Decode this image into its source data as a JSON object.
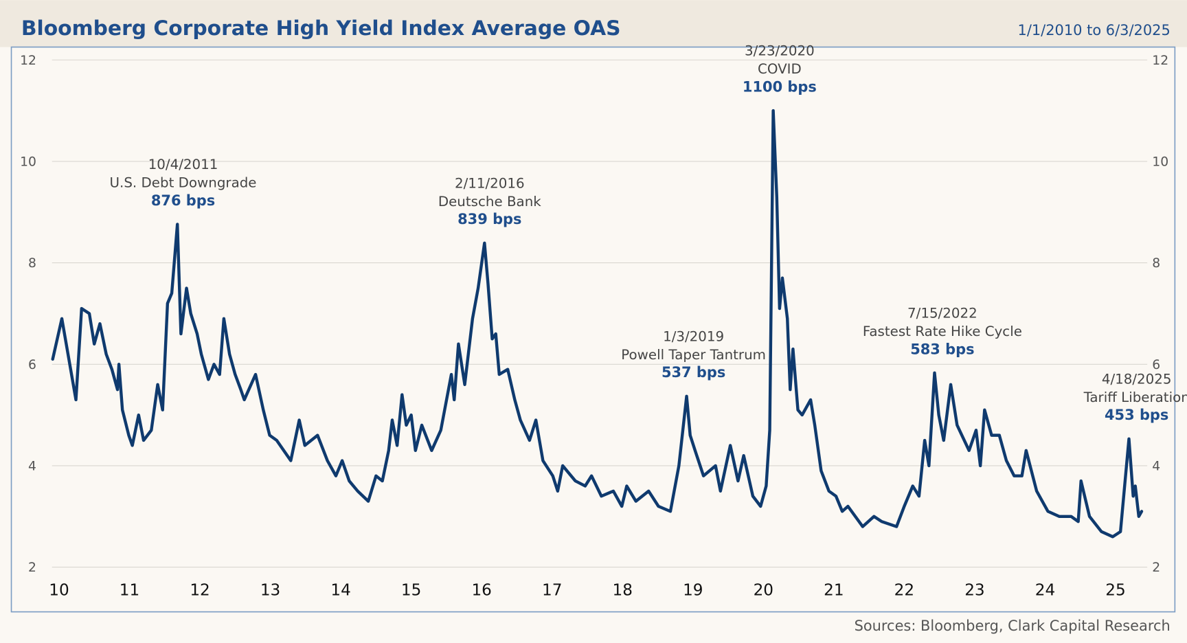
{
  "chart_data": {
    "type": "line",
    "title": "Bloomberg Corporate High Yield Index Average OAS",
    "subtitle": "1/1/2010 to 6/3/2025",
    "source": "Sources: Bloomberg, Clark Capital Research",
    "xlim": [
      9.9,
      25.45
    ],
    "xticks": [
      10,
      11,
      12,
      13,
      14,
      15,
      16,
      17,
      18,
      19,
      20,
      21,
      22,
      23,
      24,
      25
    ],
    "ylim": [
      2,
      12
    ],
    "yticks": [
      2,
      4,
      6,
      8,
      10,
      12
    ],
    "grid": true,
    "right_axis_labels": true,
    "series": [
      {
        "color": "#0f3a6e",
        "x": [
          9.91,
          10.04,
          10.24,
          10.32,
          10.43,
          10.5,
          10.58,
          10.67,
          10.75,
          10.83,
          10.85,
          10.9,
          10.99,
          11.04,
          11.13,
          11.2,
          11.31,
          11.4,
          11.47,
          11.54,
          11.6,
          11.68,
          11.73,
          11.81,
          11.87,
          11.96,
          12.02,
          12.12,
          12.2,
          12.28,
          12.34,
          12.42,
          12.5,
          12.58,
          12.63,
          12.79,
          12.9,
          12.99,
          13.09,
          13.29,
          13.41,
          13.49,
          13.67,
          13.81,
          13.93,
          14.02,
          14.12,
          14.24,
          14.39,
          14.5,
          14.59,
          14.68,
          14.73,
          14.8,
          14.87,
          14.93,
          15.0,
          15.06,
          15.15,
          15.29,
          15.42,
          15.57,
          15.61,
          15.67,
          15.76,
          15.87,
          15.95,
          16.04,
          16.09,
          16.15,
          16.2,
          16.25,
          16.37,
          16.47,
          16.55,
          16.68,
          16.77,
          16.87,
          17.01,
          17.08,
          17.15,
          17.33,
          17.47,
          17.56,
          17.7,
          17.87,
          17.99,
          18.06,
          18.19,
          18.37,
          18.51,
          18.68,
          18.8,
          18.91,
          18.96,
          19.03,
          19.15,
          19.32,
          19.39,
          19.53,
          19.64,
          19.72,
          19.85,
          19.96,
          20.04,
          20.09,
          20.14,
          20.19,
          20.23,
          20.27,
          20.34,
          20.38,
          20.42,
          20.49,
          20.55,
          20.67,
          20.73,
          20.82,
          20.93,
          21.03,
          21.12,
          21.2,
          21.41,
          21.57,
          21.68,
          21.89,
          22.0,
          22.12,
          22.21,
          22.29,
          22.35,
          22.43,
          22.49,
          22.56,
          22.66,
          22.75,
          22.92,
          23.02,
          23.08,
          23.14,
          23.24,
          23.35,
          23.45,
          23.56,
          23.67,
          23.73,
          23.88,
          24.04,
          24.2,
          24.37,
          24.47,
          24.51,
          24.63,
          24.8,
          24.96,
          25.07,
          25.19,
          25.25,
          25.28,
          25.33,
          25.37
        ],
        "values": [
          6.1,
          6.9,
          5.3,
          7.1,
          7.0,
          6.4,
          6.8,
          6.2,
          5.9,
          5.5,
          6.0,
          5.1,
          4.6,
          4.4,
          5.0,
          4.5,
          4.7,
          5.6,
          5.1,
          7.2,
          7.4,
          8.76,
          6.6,
          7.5,
          7.0,
          6.6,
          6.2,
          5.7,
          6.0,
          5.8,
          6.9,
          6.2,
          5.8,
          5.5,
          5.3,
          5.8,
          5.1,
          4.6,
          4.5,
          4.1,
          4.9,
          4.4,
          4.6,
          4.1,
          3.8,
          4.1,
          3.7,
          3.5,
          3.3,
          3.8,
          3.7,
          4.3,
          4.9,
          4.4,
          5.4,
          4.8,
          5.0,
          4.3,
          4.8,
          4.3,
          4.7,
          5.8,
          5.3,
          6.4,
          5.6,
          6.9,
          7.5,
          8.39,
          7.6,
          6.5,
          6.6,
          5.8,
          5.9,
          5.3,
          4.9,
          4.5,
          4.9,
          4.1,
          3.8,
          3.5,
          4.0,
          3.7,
          3.6,
          3.8,
          3.4,
          3.5,
          3.2,
          3.6,
          3.3,
          3.5,
          3.2,
          3.1,
          4.0,
          5.37,
          4.6,
          4.3,
          3.8,
          4.0,
          3.5,
          4.4,
          3.7,
          4.2,
          3.4,
          3.2,
          3.6,
          4.7,
          11.0,
          9.3,
          7.1,
          7.7,
          6.9,
          5.5,
          6.3,
          5.1,
          5.0,
          5.3,
          4.8,
          3.9,
          3.5,
          3.4,
          3.1,
          3.2,
          2.8,
          3.0,
          2.9,
          2.8,
          3.2,
          3.6,
          3.4,
          4.5,
          4.0,
          5.83,
          5.0,
          4.5,
          5.6,
          4.8,
          4.3,
          4.7,
          4.0,
          5.1,
          4.6,
          4.6,
          4.1,
          3.8,
          3.8,
          4.3,
          3.5,
          3.1,
          3.0,
          3.0,
          2.9,
          3.7,
          3.0,
          2.7,
          2.6,
          2.7,
          4.53,
          3.4,
          3.6,
          3.0,
          3.1
        ]
      }
    ],
    "annotations": [
      {
        "date": "10/4/2011",
        "event": "U.S. Debt Downgrade",
        "value": 876,
        "label": "876 bps"
      },
      {
        "date": "2/11/2016",
        "event": "Deutsche Bank",
        "value": 839,
        "label": "839 bps"
      },
      {
        "date": "1/3/2019",
        "event": "Powell Taper Tantrum",
        "value": 537,
        "label": "537 bps"
      },
      {
        "date": "3/23/2020",
        "event": "COVID",
        "value": 1100,
        "label": "1100 bps"
      },
      {
        "date": "7/15/2022",
        "event": "Fastest Rate Hike Cycle",
        "value": 583,
        "label": "583 bps"
      },
      {
        "date": "4/18/2025",
        "event": "Tariff Liberation",
        "value": 453,
        "label": "453 bps"
      }
    ]
  }
}
